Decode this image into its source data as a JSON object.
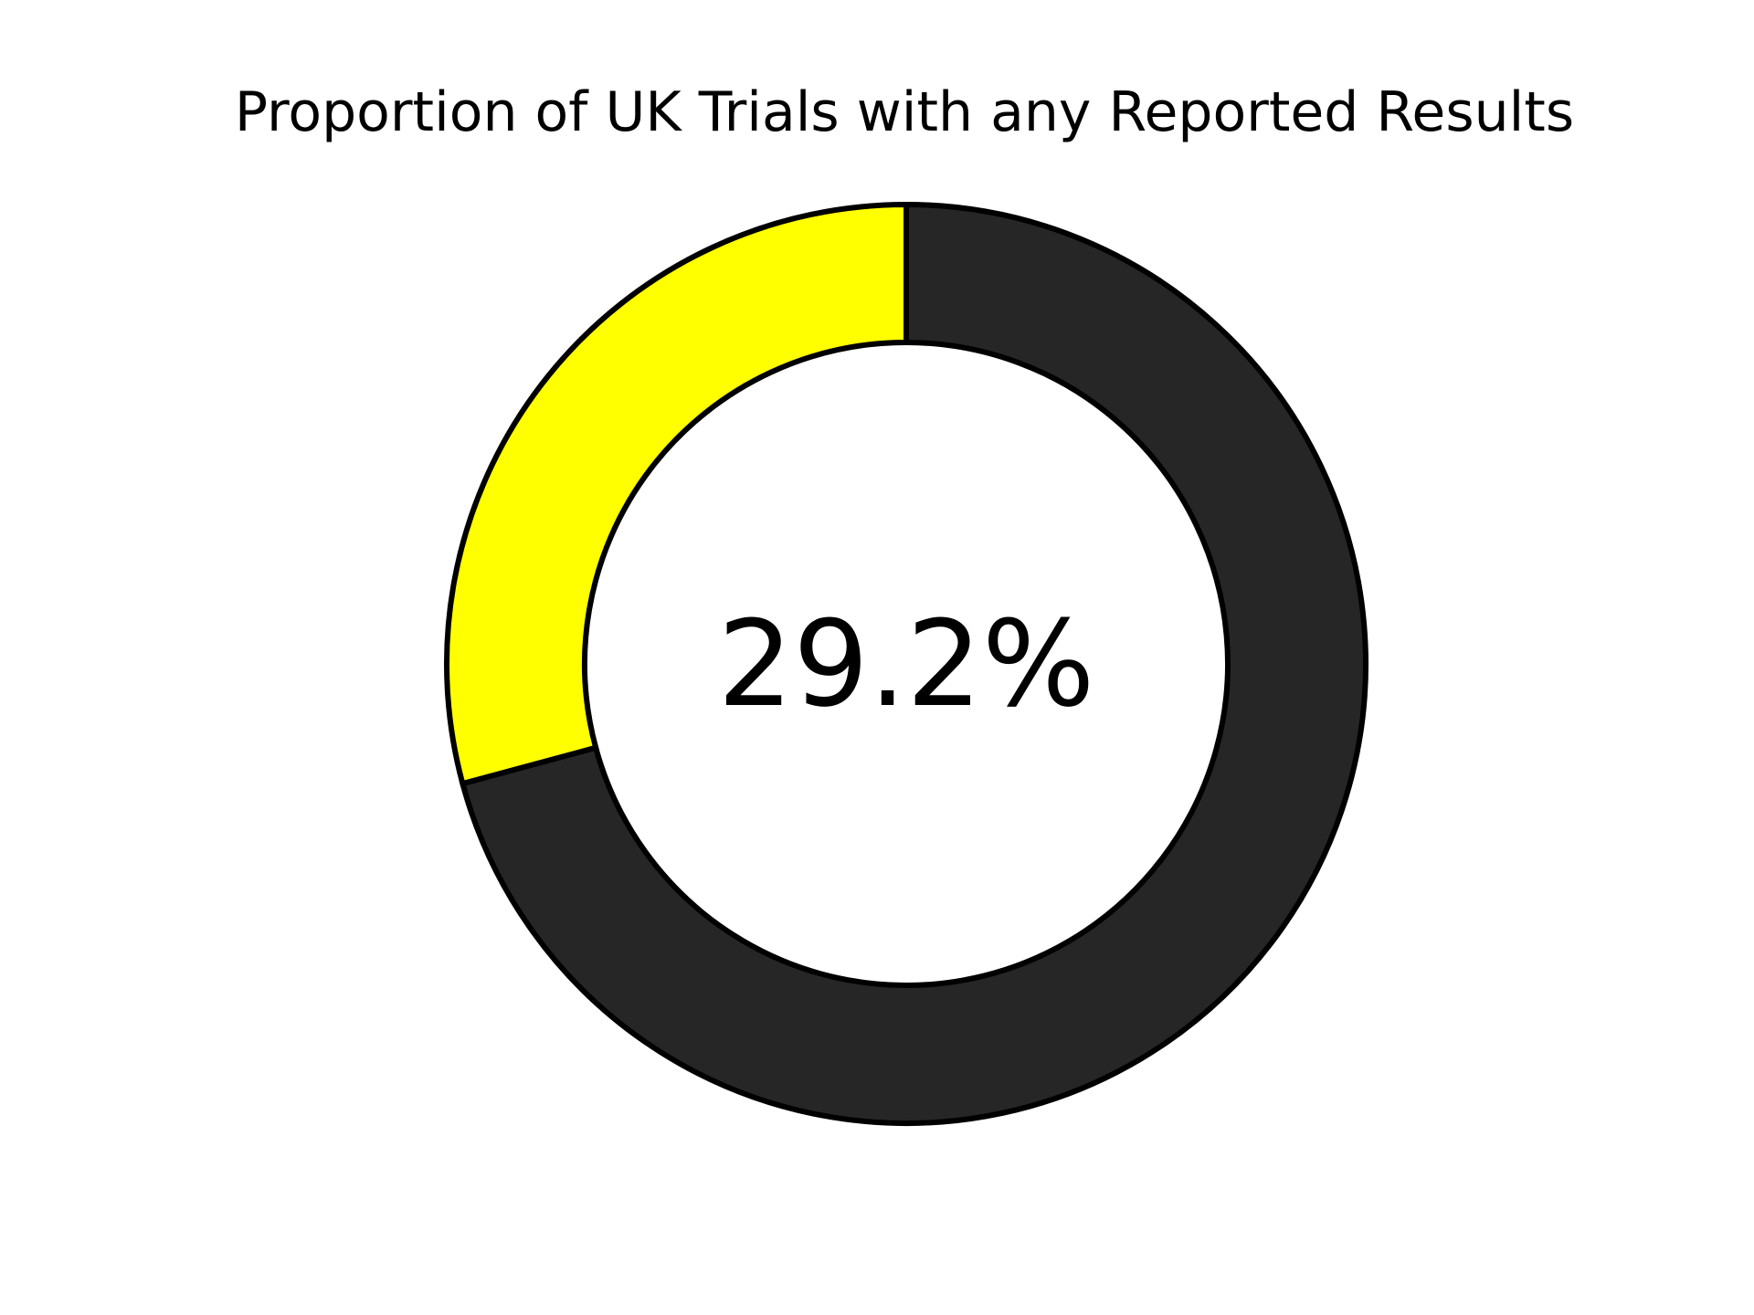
{
  "chart_data": {
    "type": "pie",
    "style": "donut",
    "title": "Proportion of UK Trials with any Reported Results",
    "center_label": "29.2%",
    "slices": [
      {
        "value": 29.2,
        "color": "#ffff00"
      },
      {
        "value": 70.8,
        "color": "#262626"
      }
    ],
    "start": "top",
    "direction": "counterclockwise",
    "edge_color": "#000000"
  }
}
